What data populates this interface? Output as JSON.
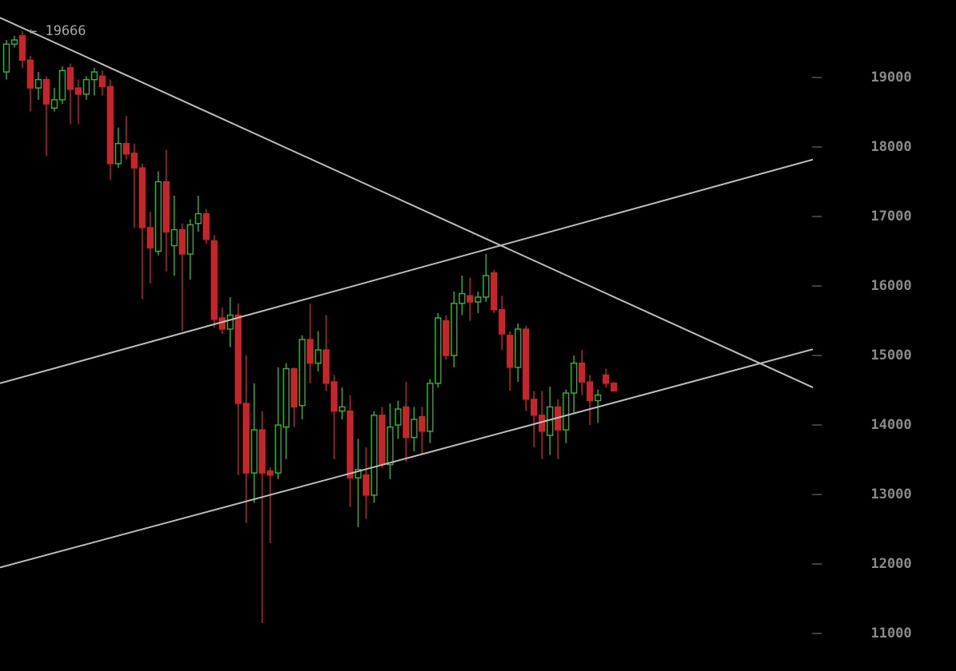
{
  "chart_data": {
    "type": "candlestick",
    "max_marker": {
      "value": 19666,
      "label": "← 19666",
      "index": 2
    },
    "up_color": "#34b534",
    "down_color": "#c4262c",
    "line_color": "#bdbdbd",
    "xlim": [
      -0.8,
      100.9
    ],
    "ylim": [
      10460,
      20115
    ],
    "yticks": [
      11000,
      12000,
      13000,
      14000,
      15000,
      16000,
      17000,
      18000,
      19000
    ],
    "open": [
      19080,
      19480,
      19600,
      19250,
      18850,
      18970,
      18560,
      18680,
      19140,
      18850,
      18760,
      18970,
      19020,
      18870,
      17760,
      18050,
      17910,
      17700,
      16840,
      16500,
      17500,
      16580,
      16810,
      16460,
      16900,
      17040,
      16650,
      15540,
      15380,
      15580,
      14310,
      13310,
      13930,
      13340,
      13310,
      13970,
      14810,
      14280,
      15230,
      14890,
      15080,
      14620,
      14200,
      14200,
      13240,
      13280,
      12990,
      14140,
      13430,
      14000,
      14260,
      13820,
      14120,
      13910,
      14600,
      15500,
      15000,
      15750,
      15860,
      15770,
      15840,
      16190,
      15660,
      15290,
      14830,
      15380,
      14370,
      14140,
      13850,
      14260,
      13930,
      14460,
      14890,
      14620,
      14350,
      14720,
      14600
    ],
    "high": [
      19540,
      19600,
      19666,
      19310,
      19080,
      19020,
      18850,
      19160,
      19200,
      18970,
      19020,
      19140,
      19100,
      18970,
      18280,
      18450,
      18050,
      17760,
      17070,
      17650,
      17960,
      17300,
      16900,
      16960,
      17300,
      17110,
      16730,
      15690,
      15840,
      15750,
      15000,
      14600,
      14200,
      13390,
      14830,
      14890,
      14830,
      15290,
      15750,
      15350,
      15580,
      14720,
      14540,
      14430,
      13800,
      13680,
      14200,
      14260,
      14310,
      14350,
      14620,
      14260,
      14260,
      14660,
      15610,
      15580,
      15920,
      16150,
      16120,
      15920,
      16460,
      16230,
      15860,
      15350,
      15460,
      15430,
      14490,
      14490,
      14550,
      14370,
      14510,
      15000,
      15080,
      14720,
      14510,
      14810,
      14620
    ],
    "low": [
      18970,
      19430,
      19140,
      18510,
      18680,
      17870,
      18510,
      18620,
      18330,
      18330,
      18680,
      18740,
      18740,
      17530,
      17700,
      17820,
      16840,
      15810,
      16040,
      16440,
      16210,
      16150,
      15350,
      16090,
      16780,
      16610,
      15400,
      15310,
      15120,
      13280,
      12590,
      12880,
      11150,
      12300,
      13220,
      13510,
      13970,
      14080,
      14600,
      14770,
      14490,
      13510,
      14080,
      12820,
      12530,
      12650,
      12880,
      13390,
      13220,
      13800,
      13470,
      13620,
      13570,
      13740,
      14540,
      14940,
      14830,
      15580,
      15500,
      15610,
      15770,
      15610,
      15080,
      14490,
      14620,
      14200,
      13680,
      13510,
      13570,
      13510,
      13740,
      14160,
      14430,
      14000,
      14030,
      14540,
      14490
    ],
    "close": [
      19480,
      19540,
      19250,
      18850,
      18970,
      18620,
      18680,
      19100,
      18830,
      18760,
      18970,
      19080,
      18870,
      17760,
      18050,
      17900,
      17700,
      16840,
      16550,
      17500,
      16780,
      16810,
      16460,
      16880,
      17040,
      16670,
      15520,
      15380,
      15580,
      14310,
      13310,
      13930,
      13310,
      13280,
      14000,
      14810,
      14260,
      15230,
      14890,
      15080,
      14600,
      14200,
      14260,
      13240,
      13360,
      12990,
      14140,
      13430,
      13970,
      14230,
      13820,
      14080,
      13910,
      14600,
      15540,
      15000,
      15750,
      15890,
      15770,
      15840,
      16150,
      15660,
      15310,
      14830,
      15380,
      14370,
      14140,
      13910,
      14260,
      13930,
      14460,
      14890,
      14620,
      14350,
      14430,
      14600,
      14490
    ],
    "trendlines": [
      {
        "x": [
          -0.8,
          100.9
        ],
        "y": [
          19860,
          14540
        ]
      },
      {
        "x": [
          -0.8,
          100.9
        ],
        "y": [
          14600,
          17820
        ]
      },
      {
        "x": [
          -0.8,
          100.9
        ],
        "y": [
          11950,
          15090
        ]
      }
    ]
  }
}
